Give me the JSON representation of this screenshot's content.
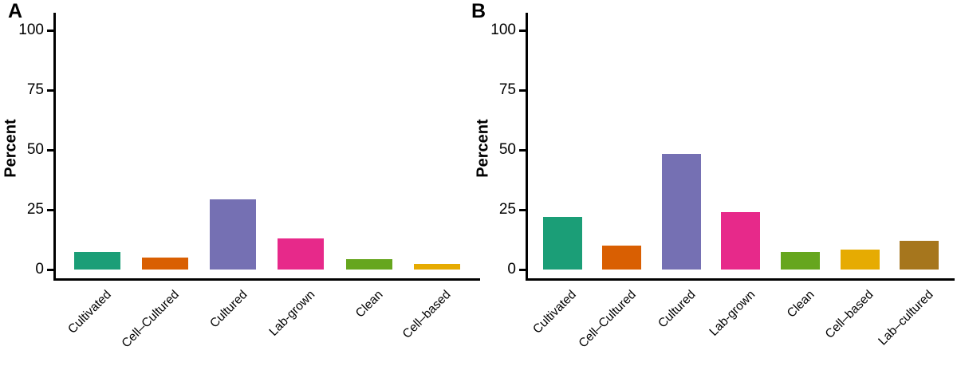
{
  "figure": {
    "panel_labels": [
      "A",
      "B"
    ],
    "y_axis_title": "Percent",
    "axis_color": "#000000",
    "background_color": "#FFFFFF",
    "text_color": "#000000"
  },
  "chart_data": [
    {
      "type": "bar",
      "panel": "A",
      "title": "",
      "xlabel": "",
      "ylabel": "Percent",
      "categories": [
        "Cultivated",
        "Cell–Cultured",
        "Cultured",
        "Lab-grown",
        "Clean",
        "Cell–based"
      ],
      "values": [
        7.5,
        5,
        29.5,
        13,
        4.5,
        2.5
      ],
      "colors": [
        "#1B9E77",
        "#D95F02",
        "#7570B3",
        "#E7298A",
        "#66A61E",
        "#E6AB02"
      ],
      "ylim": [
        0,
        105
      ],
      "yticks": [
        0,
        25,
        50,
        75,
        100
      ],
      "grid": false,
      "legend": "none",
      "x_label_angle_deg": 45
    },
    {
      "type": "bar",
      "panel": "B",
      "title": "",
      "xlabel": "",
      "ylabel": "Percent",
      "categories": [
        "Cultivated",
        "Cell–Cultured",
        "Cultured",
        "Lab-grown",
        "Clean",
        "Cell–based",
        "Lab–cultured"
      ],
      "values": [
        22,
        10,
        48.5,
        24,
        7.5,
        8.5,
        12
      ],
      "colors": [
        "#1B9E77",
        "#D95F02",
        "#7570B3",
        "#E7298A",
        "#66A61E",
        "#E6AB02",
        "#A6761D"
      ],
      "ylim": [
        0,
        105
      ],
      "yticks": [
        0,
        25,
        50,
        75,
        100
      ],
      "grid": false,
      "legend": "none",
      "x_label_angle_deg": 45
    }
  ]
}
